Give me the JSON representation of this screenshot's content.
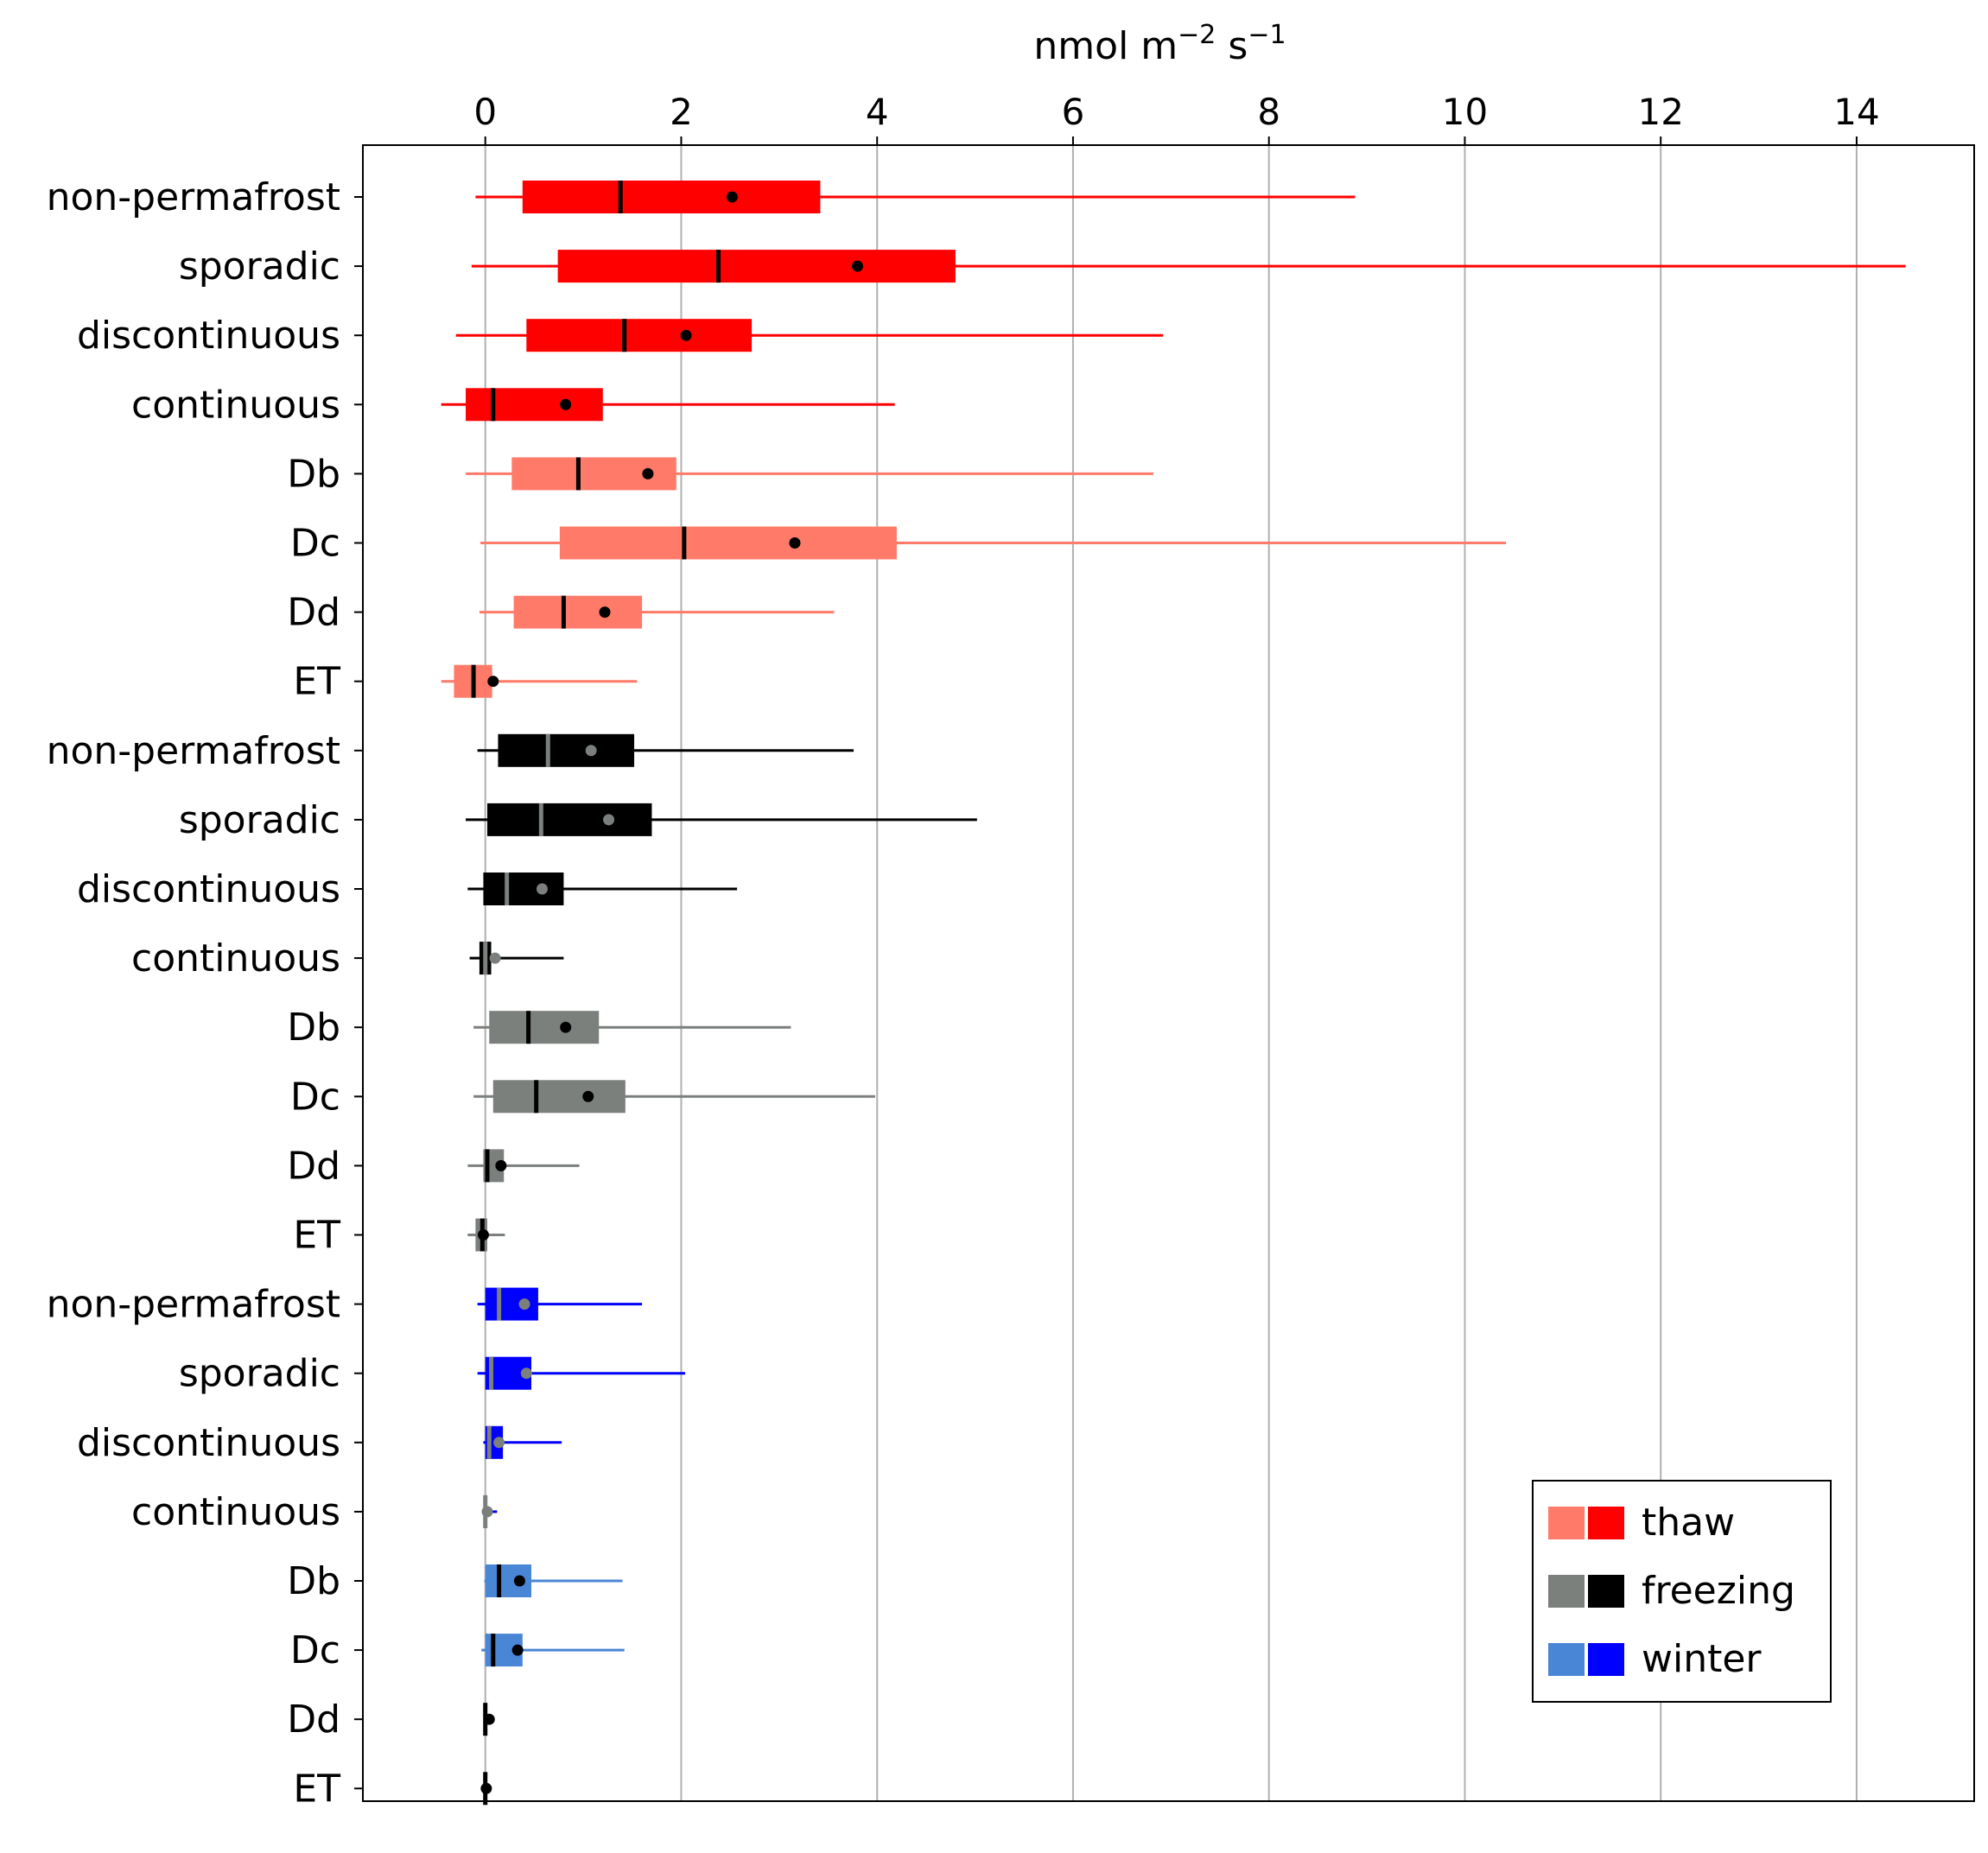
{
  "chart_data": {
    "type": "box",
    "title": "",
    "xlabel": "nmol m−2 s−1",
    "xlabel_base": "nmol m",
    "xlabel_exp1": "−2",
    "xlabel_mid": " s",
    "xlabel_exp2": "−1",
    "ylabel": "",
    "xlim": [
      -1.25,
      15.2
    ],
    "x_ticks": [
      0,
      2,
      4,
      6,
      8,
      10,
      12,
      14
    ],
    "x_tick_labels": [
      "0",
      "2",
      "4",
      "6",
      "8",
      "10",
      "12",
      "14"
    ],
    "x_axis_position": "top",
    "grid": "vertical",
    "legend_position": "lower right",
    "legend": [
      {
        "label": "thaw",
        "colors": [
          "#ff7a69",
          "#ff0000"
        ]
      },
      {
        "label": "freezing",
        "colors": [
          "#7b807c",
          "#000000"
        ]
      },
      {
        "label": "winter",
        "colors": [
          "#4a86d6",
          "#0000ff"
        ]
      }
    ],
    "rows": [
      {
        "label": "non-permafrost",
        "season": "thaw",
        "group": "permafrost",
        "box_color": "#ff0000",
        "line_color": "#ff0000",
        "median_color": "#000000",
        "mean_color": "#000000",
        "whisker_low": -0.1,
        "q1": 0.38,
        "median": 1.38,
        "q3": 3.42,
        "whisker_high": 8.88,
        "mean": 2.52
      },
      {
        "label": "sporadic",
        "season": "thaw",
        "group": "permafrost",
        "box_color": "#ff0000",
        "line_color": "#ff0000",
        "median_color": "#000000",
        "mean_color": "#000000",
        "whisker_low": -0.14,
        "q1": 0.74,
        "median": 2.38,
        "q3": 4.8,
        "whisker_high": 14.5,
        "mean": 3.8
      },
      {
        "label": "discontinuous",
        "season": "thaw",
        "group": "permafrost",
        "box_color": "#ff0000",
        "line_color": "#ff0000",
        "median_color": "#000000",
        "mean_color": "#000000",
        "whisker_low": -0.3,
        "q1": 0.42,
        "median": 1.42,
        "q3": 2.72,
        "whisker_high": 6.92,
        "mean": 2.05
      },
      {
        "label": "continuous",
        "season": "thaw",
        "group": "permafrost",
        "box_color": "#ff0000",
        "line_color": "#ff0000",
        "median_color": "#000000",
        "mean_color": "#000000",
        "whisker_low": -0.45,
        "q1": -0.2,
        "median": 0.08,
        "q3": 1.2,
        "whisker_high": 4.18,
        "mean": 0.82
      },
      {
        "label": "Db",
        "season": "thaw",
        "group": "climate",
        "box_color": "#ff7a69",
        "line_color": "#ff7a69",
        "median_color": "#000000",
        "mean_color": "#000000",
        "whisker_low": -0.2,
        "q1": 0.27,
        "median": 0.95,
        "q3": 1.95,
        "whisker_high": 6.82,
        "mean": 1.66
      },
      {
        "label": "Dc",
        "season": "thaw",
        "group": "climate",
        "box_color": "#ff7a69",
        "line_color": "#ff7a69",
        "median_color": "#000000",
        "mean_color": "#000000",
        "whisker_low": -0.05,
        "q1": 0.76,
        "median": 2.03,
        "q3": 4.2,
        "whisker_high": 10.42,
        "mean": 3.16
      },
      {
        "label": "Dd",
        "season": "thaw",
        "group": "climate",
        "box_color": "#ff7a69",
        "line_color": "#ff7a69",
        "median_color": "#000000",
        "mean_color": "#000000",
        "whisker_low": -0.06,
        "q1": 0.29,
        "median": 0.8,
        "q3": 1.6,
        "whisker_high": 3.56,
        "mean": 1.22
      },
      {
        "label": "ET",
        "season": "thaw",
        "group": "climate",
        "box_color": "#ff7a69",
        "line_color": "#ff7a69",
        "median_color": "#000000",
        "mean_color": "#000000",
        "whisker_low": -0.45,
        "q1": -0.32,
        "median": -0.12,
        "q3": 0.07,
        "whisker_high": 1.55,
        "mean": 0.08
      },
      {
        "label": "non-permafrost",
        "season": "freezing",
        "group": "permafrost",
        "box_color": "#000000",
        "line_color": "#000000",
        "median_color": "#7b807c",
        "mean_color": "#7b807c",
        "whisker_low": -0.08,
        "q1": 0.13,
        "median": 0.64,
        "q3": 1.52,
        "whisker_high": 3.76,
        "mean": 1.08
      },
      {
        "label": "sporadic",
        "season": "freezing",
        "group": "permafrost",
        "box_color": "#000000",
        "line_color": "#000000",
        "median_color": "#7b807c",
        "mean_color": "#7b807c",
        "whisker_low": -0.2,
        "q1": 0.02,
        "median": 0.57,
        "q3": 1.7,
        "whisker_high": 5.02,
        "mean": 1.26
      },
      {
        "label": "discontinuous",
        "season": "freezing",
        "group": "permafrost",
        "box_color": "#000000",
        "line_color": "#000000",
        "median_color": "#7b807c",
        "mean_color": "#7b807c",
        "whisker_low": -0.18,
        "q1": -0.02,
        "median": 0.22,
        "q3": 0.8,
        "whisker_high": 2.57,
        "mean": 0.58
      },
      {
        "label": "continuous",
        "season": "freezing",
        "group": "permafrost",
        "box_color": "#000000",
        "line_color": "#000000",
        "median_color": "#7b807c",
        "mean_color": "#7b807c",
        "whisker_low": -0.16,
        "q1": -0.06,
        "median": 0.0,
        "q3": 0.06,
        "whisker_high": 0.8,
        "mean": 0.1
      },
      {
        "label": "Db",
        "season": "freezing",
        "group": "climate",
        "box_color": "#7b807c",
        "line_color": "#7b807c",
        "median_color": "#000000",
        "mean_color": "#000000",
        "whisker_low": -0.12,
        "q1": 0.04,
        "median": 0.44,
        "q3": 1.16,
        "whisker_high": 3.12,
        "mean": 0.82
      },
      {
        "label": "Dc",
        "season": "freezing",
        "group": "climate",
        "box_color": "#7b807c",
        "line_color": "#7b807c",
        "median_color": "#000000",
        "mean_color": "#000000",
        "whisker_low": -0.12,
        "q1": 0.08,
        "median": 0.52,
        "q3": 1.43,
        "whisker_high": 3.98,
        "mean": 1.05
      },
      {
        "label": "Dd",
        "season": "freezing",
        "group": "climate",
        "box_color": "#7b807c",
        "line_color": "#7b807c",
        "median_color": "#000000",
        "mean_color": "#000000",
        "whisker_low": -0.18,
        "q1": -0.02,
        "median": 0.02,
        "q3": 0.19,
        "whisker_high": 0.96,
        "mean": 0.16
      },
      {
        "label": "ET",
        "season": "freezing",
        "group": "climate",
        "box_color": "#7b807c",
        "line_color": "#7b807c",
        "median_color": "#000000",
        "mean_color": "#000000",
        "whisker_low": -0.18,
        "q1": -0.1,
        "median": -0.03,
        "q3": 0.02,
        "whisker_high": 0.2,
        "mean": -0.02
      },
      {
        "label": "non-permafrost",
        "season": "winter",
        "group": "permafrost",
        "box_color": "#0000ff",
        "line_color": "#0000ff",
        "median_color": "#7b807c",
        "mean_color": "#7b807c",
        "whisker_low": -0.08,
        "q1": 0.0,
        "median": 0.14,
        "q3": 0.54,
        "whisker_high": 1.6,
        "mean": 0.4
      },
      {
        "label": "sporadic",
        "season": "winter",
        "group": "permafrost",
        "box_color": "#0000ff",
        "line_color": "#0000ff",
        "median_color": "#7b807c",
        "mean_color": "#7b807c",
        "whisker_low": -0.08,
        "q1": 0.0,
        "median": 0.06,
        "q3": 0.47,
        "whisker_high": 2.04,
        "mean": 0.42
      },
      {
        "label": "discontinuous",
        "season": "winter",
        "group": "permafrost",
        "box_color": "#0000ff",
        "line_color": "#0000ff",
        "median_color": "#7b807c",
        "mean_color": "#7b807c",
        "whisker_low": -0.02,
        "q1": 0.0,
        "median": 0.04,
        "q3": 0.18,
        "whisker_high": 0.78,
        "mean": 0.14
      },
      {
        "label": "continuous",
        "season": "winter",
        "group": "permafrost",
        "box_color": "#0000ff",
        "line_color": "#0000ff",
        "median_color": "#7b807c",
        "mean_color": "#7b807c",
        "whisker_low": -0.01,
        "q1": -0.01,
        "median": 0.0,
        "q3": 0.01,
        "whisker_high": 0.12,
        "mean": 0.02
      },
      {
        "label": "Db",
        "season": "winter",
        "group": "climate",
        "box_color": "#4a86d6",
        "line_color": "#4a86d6",
        "median_color": "#000000",
        "mean_color": "#000000",
        "whisker_low": -0.01,
        "q1": 0.0,
        "median": 0.14,
        "q3": 0.47,
        "whisker_high": 1.4,
        "mean": 0.35
      },
      {
        "label": "Dc",
        "season": "winter",
        "group": "climate",
        "box_color": "#4a86d6",
        "line_color": "#4a86d6",
        "median_color": "#000000",
        "mean_color": "#000000",
        "whisker_low": -0.04,
        "q1": 0.0,
        "median": 0.08,
        "q3": 0.38,
        "whisker_high": 1.42,
        "mean": 0.33
      },
      {
        "label": "Dd",
        "season": "winter",
        "group": "climate",
        "box_color": "#4a86d6",
        "line_color": "#4a86d6",
        "median_color": "#000000",
        "mean_color": "#000000",
        "whisker_low": -0.01,
        "q1": -0.01,
        "median": 0.0,
        "q3": 0.01,
        "whisker_high": 0.05,
        "mean": 0.04
      },
      {
        "label": "ET",
        "season": "winter",
        "group": "climate",
        "box_color": "#4a86d6",
        "line_color": "#4a86d6",
        "median_color": "#000000",
        "mean_color": "#000000",
        "whisker_low": -0.01,
        "q1": -0.01,
        "median": 0.0,
        "q3": 0.005,
        "whisker_high": 0.02,
        "mean": 0.01
      }
    ]
  }
}
